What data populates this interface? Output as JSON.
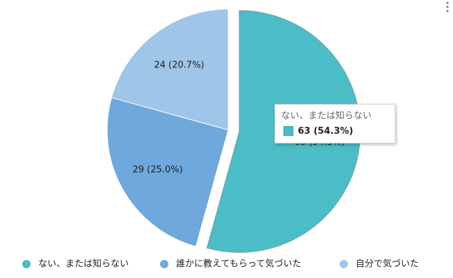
{
  "chart_data": {
    "type": "pie",
    "categories": [
      "ない、または知らない",
      "誰かに教えてもらって気づいた",
      "自分で気づいた"
    ],
    "values": [
      63,
      29,
      24
    ],
    "value_labels": [
      "63 (54.3%)",
      "29 (25.0%)",
      "24 (20.7%)"
    ],
    "colors": [
      "#4bbdc7",
      "#6fa8dc",
      "#9fc5e8"
    ],
    "legend": "bottom"
  }
}
